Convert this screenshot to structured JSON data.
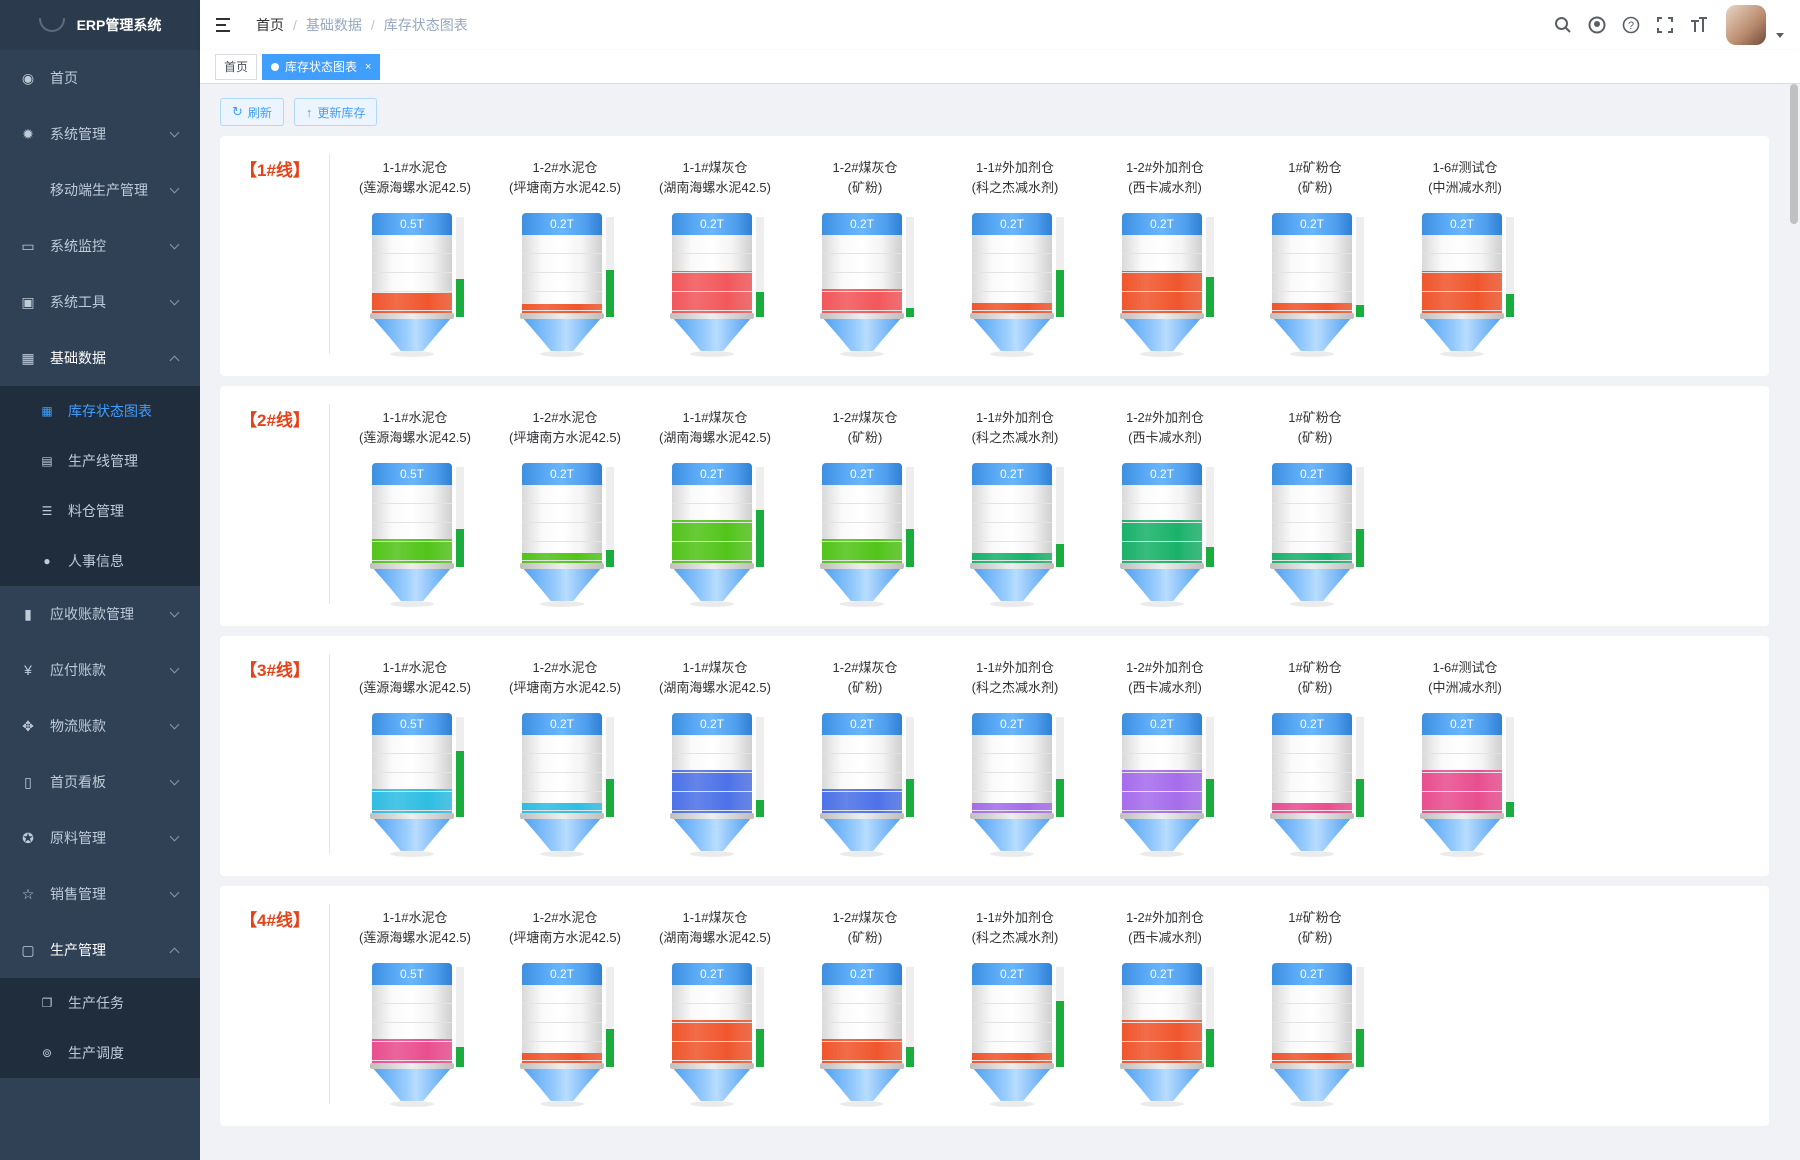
{
  "app": {
    "title": "ERP管理系统"
  },
  "sidebar": {
    "items": [
      {
        "label": "首页",
        "icon": "dashboard-icon"
      },
      {
        "label": "系统管理",
        "icon": "gear-icon"
      },
      {
        "label": "移动端生产管理",
        "icon": ""
      },
      {
        "label": "系统监控",
        "icon": "monitor-icon"
      },
      {
        "label": "系统工具",
        "icon": "toolbox-icon"
      },
      {
        "label": "基础数据",
        "icon": "table-icon"
      },
      {
        "label": "应收账款管理",
        "icon": "book-icon"
      },
      {
        "label": "应付账款",
        "icon": "yen-icon"
      },
      {
        "label": "物流账款",
        "icon": "move-icon"
      },
      {
        "label": "首页看板",
        "icon": "board-icon"
      },
      {
        "label": "原料管理",
        "icon": "lifebuoy-icon"
      },
      {
        "label": "销售管理",
        "icon": "star-icon"
      },
      {
        "label": "生产管理",
        "icon": "production-icon"
      }
    ],
    "basic_sub": [
      {
        "label": "库存状态图表"
      },
      {
        "label": "生产线管理"
      },
      {
        "label": "料仓管理"
      },
      {
        "label": "人事信息"
      }
    ],
    "production_sub": [
      {
        "label": "生产任务"
      },
      {
        "label": "生产调度"
      }
    ]
  },
  "header": {
    "breadcrumb": [
      "首页",
      "基础数据",
      "库存状态图表"
    ]
  },
  "tags": {
    "home": "首页",
    "active": "库存状态图表",
    "close": "×"
  },
  "toolbar": {
    "refresh": "刷新",
    "update": "更新库存"
  },
  "colors": {
    "accent": "#409eff",
    "line_title": "#e6421a",
    "gauge": "#1aad3e"
  },
  "lines": [
    {
      "title": "【1#线】",
      "silos": [
        {
          "name": "1-1#水泥仓",
          "sub": "(莲源海螺水泥42.5)",
          "cap": "0.5T",
          "fill": 0.28,
          "color": "#f0562d",
          "gauge": 0.38
        },
        {
          "name": "1-2#水泥仓",
          "sub": "(坪塘南方水泥42.5)",
          "cap": "0.2T",
          "fill": 0.14,
          "color": "#f0562d",
          "gauge": 0.47
        },
        {
          "name": "1-1#煤灰仓",
          "sub": "(湖南海螺水泥42.5)",
          "cap": "0.2T",
          "fill": 0.55,
          "color": "#f2575b",
          "gauge": 0.25
        },
        {
          "name": "1-2#煤灰仓",
          "sub": "(矿粉)",
          "cap": "0.2T",
          "fill": 0.32,
          "color": "#f2575b",
          "gauge": 0.09
        },
        {
          "name": "1-1#外加剂仓",
          "sub": "(科之杰减水剂)",
          "cap": "0.2T",
          "fill": 0.15,
          "color": "#f0562d",
          "gauge": 0.47
        },
        {
          "name": "1-2#外加剂仓",
          "sub": "(西卡减水剂)",
          "cap": "0.2T",
          "fill": 0.55,
          "color": "#f0562d",
          "gauge": 0.4
        },
        {
          "name": "1#矿粉仓",
          "sub": "(矿粉)",
          "cap": "0.2T",
          "fill": 0.15,
          "color": "#f0562d",
          "gauge": 0.12
        },
        {
          "name": "1-6#测试仓",
          "sub": "(中洲减水剂)",
          "cap": "0.2T",
          "fill": 0.55,
          "color": "#f0562d",
          "gauge": 0.23
        }
      ]
    },
    {
      "title": "【2#线】",
      "silos": [
        {
          "name": "1-1#水泥仓",
          "sub": "(莲源海螺水泥42.5)",
          "cap": "0.5T",
          "fill": 0.33,
          "color": "#52c41a",
          "gauge": 0.38
        },
        {
          "name": "1-2#水泥仓",
          "sub": "(坪塘南方水泥42.5)",
          "cap": "0.2T",
          "fill": 0.15,
          "color": "#52c41a",
          "gauge": 0.17
        },
        {
          "name": "1-1#煤灰仓",
          "sub": "(湖南海螺水泥42.5)",
          "cap": "0.2T",
          "fill": 0.56,
          "color": "#52c41a",
          "gauge": 0.57
        },
        {
          "name": "1-2#煤灰仓",
          "sub": "(矿粉)",
          "cap": "0.2T",
          "fill": 0.33,
          "color": "#52c41a",
          "gauge": 0.38
        },
        {
          "name": "1-1#外加剂仓",
          "sub": "(科之杰减水剂)",
          "cap": "0.2T",
          "fill": 0.15,
          "color": "#1ab26b",
          "gauge": 0.23
        },
        {
          "name": "1-2#外加剂仓",
          "sub": "(西卡减水剂)",
          "cap": "0.2T",
          "fill": 0.56,
          "color": "#1ab26b",
          "gauge": 0.2
        },
        {
          "name": "1#矿粉仓",
          "sub": "(矿粉)",
          "cap": "0.2T",
          "fill": 0.15,
          "color": "#1ab26b",
          "gauge": 0.38
        }
      ]
    },
    {
      "title": "【3#线】",
      "silos": [
        {
          "name": "1-1#水泥仓",
          "sub": "(莲源海螺水泥42.5)",
          "cap": "0.5T",
          "fill": 0.33,
          "color": "#2fbde3",
          "gauge": 0.66
        },
        {
          "name": "1-2#水泥仓",
          "sub": "(坪塘南方水泥42.5)",
          "cap": "0.2T",
          "fill": 0.15,
          "color": "#2fbde3",
          "gauge": 0.38
        },
        {
          "name": "1-1#煤灰仓",
          "sub": "(湖南海螺水泥42.5)",
          "cap": "0.2T",
          "fill": 0.56,
          "color": "#4d72e8",
          "gauge": 0.17
        },
        {
          "name": "1-2#煤灰仓",
          "sub": "(矿粉)",
          "cap": "0.2T",
          "fill": 0.33,
          "color": "#4d72e8",
          "gauge": 0.38
        },
        {
          "name": "1-1#外加剂仓",
          "sub": "(科之杰减水剂)",
          "cap": "0.2T",
          "fill": 0.15,
          "color": "#a66cec",
          "gauge": 0.38
        },
        {
          "name": "1-2#外加剂仓",
          "sub": "(西卡减水剂)",
          "cap": "0.2T",
          "fill": 0.56,
          "color": "#a66cec",
          "gauge": 0.38
        },
        {
          "name": "1#矿粉仓",
          "sub": "(矿粉)",
          "cap": "0.2T",
          "fill": 0.15,
          "color": "#e94e8f",
          "gauge": 0.38
        },
        {
          "name": "1-6#测试仓",
          "sub": "(中洲减水剂)",
          "cap": "0.2T",
          "fill": 0.56,
          "color": "#e94e8f",
          "gauge": 0.15
        }
      ]
    },
    {
      "title": "【4#线】",
      "silos": [
        {
          "name": "1-1#水泥仓",
          "sub": "(莲源海螺水泥42.5)",
          "cap": "0.5T",
          "fill": 0.33,
          "color": "#e94e8f",
          "gauge": 0.2
        },
        {
          "name": "1-2#水泥仓",
          "sub": "(坪塘南方水泥42.5)",
          "cap": "0.2T",
          "fill": 0.15,
          "color": "#f0562d",
          "gauge": 0.38
        },
        {
          "name": "1-1#煤灰仓",
          "sub": "(湖南海螺水泥42.5)",
          "cap": "0.2T",
          "fill": 0.56,
          "color": "#f0562d",
          "gauge": 0.38
        },
        {
          "name": "1-2#煤灰仓",
          "sub": "(矿粉)",
          "cap": "0.2T",
          "fill": 0.33,
          "color": "#f0562d",
          "gauge": 0.2
        },
        {
          "name": "1-1#外加剂仓",
          "sub": "(科之杰减水剂)",
          "cap": "0.2T",
          "fill": 0.15,
          "color": "#f0562d",
          "gauge": 0.66
        },
        {
          "name": "1-2#外加剂仓",
          "sub": "(西卡减水剂)",
          "cap": "0.2T",
          "fill": 0.56,
          "color": "#f0562d",
          "gauge": 0.38
        },
        {
          "name": "1#矿粉仓",
          "sub": "(矿粉)",
          "cap": "0.2T",
          "fill": 0.15,
          "color": "#f0562d",
          "gauge": 0.38
        }
      ]
    }
  ]
}
